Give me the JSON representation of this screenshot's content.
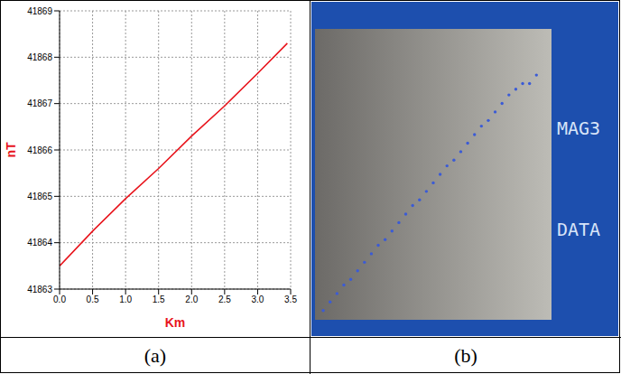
{
  "chart_data": [
    {
      "type": "line",
      "caption": "(a)",
      "x_label": "Km",
      "y_label": "nT",
      "color": "#e8141c",
      "x": [
        0,
        0.5,
        1.0,
        1.5,
        2.0,
        2.5,
        3.0,
        3.45
      ],
      "values": [
        41863.5,
        41864.25,
        41864.95,
        41865.6,
        41866.3,
        41866.95,
        41867.65,
        41868.3
      ],
      "xlim": [
        0,
        3.5
      ],
      "xticks": [
        {
          "value": 0,
          "label": "0.0"
        },
        {
          "value": 0.5,
          "label": "0.5"
        },
        {
          "value": 1,
          "label": "1.0"
        },
        {
          "value": 1.5,
          "label": "1.5"
        },
        {
          "value": 2,
          "label": "2.0"
        },
        {
          "value": 2.5,
          "label": "2.5"
        },
        {
          "value": 3,
          "label": "3.0"
        },
        {
          "value": 3.5,
          "label": "3.5"
        }
      ],
      "ylim": [
        41863,
        41869
      ],
      "yticks": [
        41863,
        41864,
        41865,
        41866,
        41867,
        41868,
        41869
      ],
      "grid": true
    },
    {
      "type": "scatter",
      "caption": "(b)",
      "annotations": [
        "MAG3",
        "DATA"
      ],
      "color": "#3b5bd6",
      "marker": "circle",
      "x": [
        2,
        5,
        8,
        11,
        14,
        17,
        20,
        23,
        26,
        29,
        32,
        35,
        38,
        41,
        44,
        47,
        50,
        53,
        56,
        59,
        62,
        65,
        68,
        71,
        74,
        77,
        80,
        83,
        86,
        89,
        92,
        95
      ],
      "values": [
        2,
        5,
        8,
        11,
        13,
        16,
        19,
        22,
        25,
        27,
        30,
        33,
        36,
        39,
        41,
        44,
        47,
        50,
        53,
        55,
        58,
        61,
        64,
        67,
        69,
        72,
        75,
        78,
        80,
        82,
        82,
        85
      ],
      "xlim": [
        0,
        100
      ],
      "ylim": [
        0,
        100
      ],
      "tick_labels": false,
      "grid": false
    }
  ]
}
